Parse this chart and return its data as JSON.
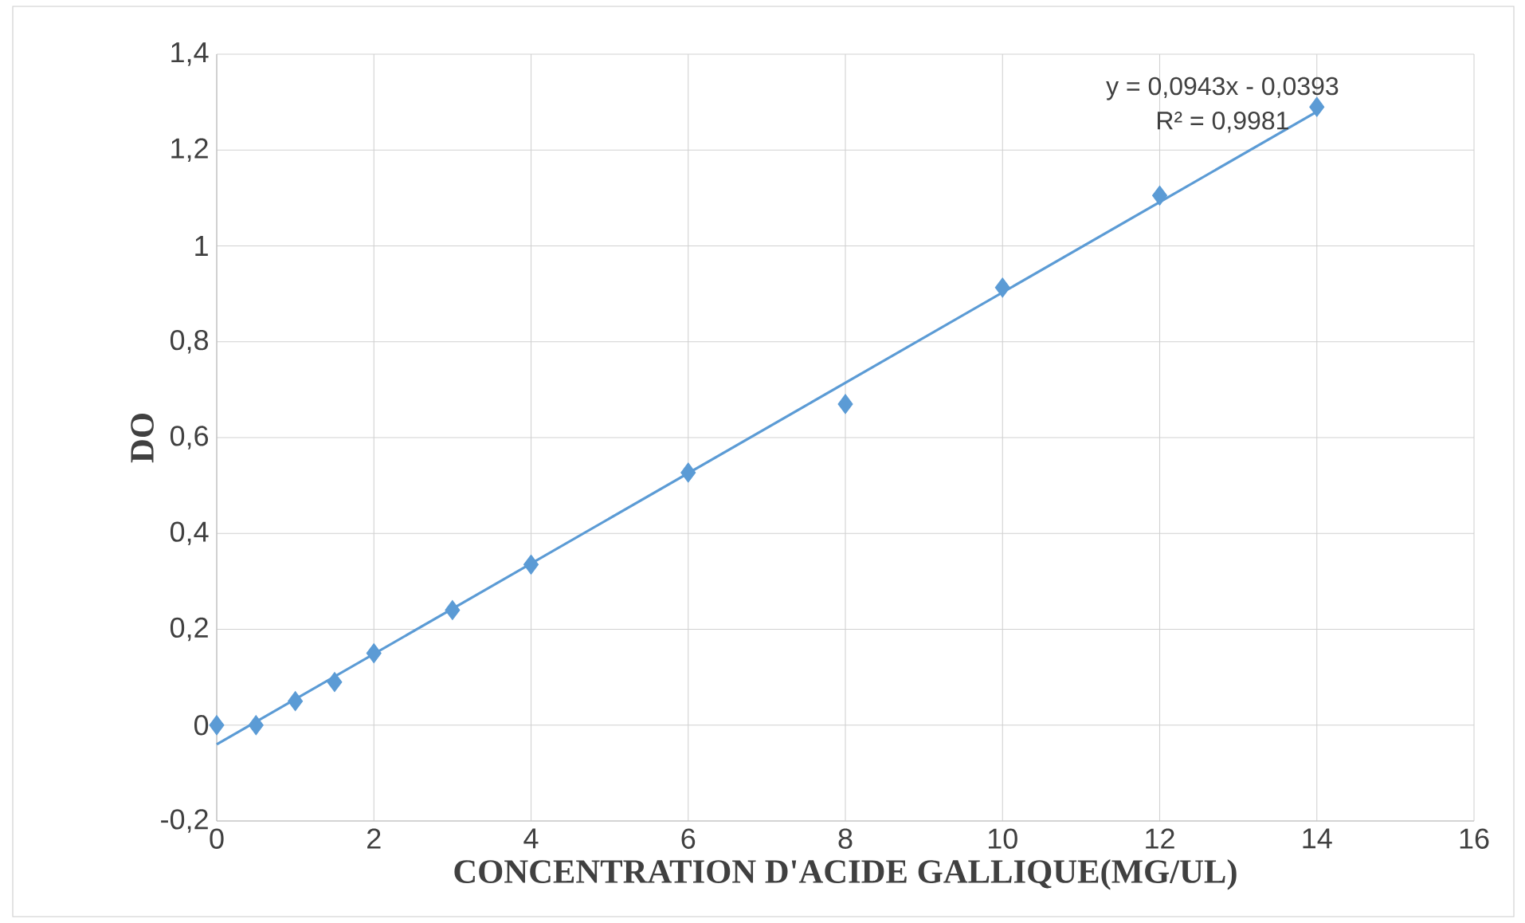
{
  "chart_data": {
    "type": "scatter",
    "xlabel": "CONCENTRATION D'ACIDE GALLIQUE(MG/UL)",
    "ylabel": "DO",
    "annotations": [
      "y = 0,0943x - 0,0393",
      "R² = 0,9981"
    ],
    "xlim": [
      0,
      16
    ],
    "xticks": [
      0,
      2,
      4,
      6,
      8,
      10,
      12,
      14,
      16
    ],
    "ylim": [
      -0.2,
      1.4
    ],
    "yticks": [
      {
        "value": -0.2,
        "label": "-0,2"
      },
      {
        "value": 0,
        "label": "0"
      },
      {
        "value": 0.2,
        "label": "0,2"
      },
      {
        "value": 0.4,
        "label": "0,4"
      },
      {
        "value": 0.6,
        "label": "0,6"
      },
      {
        "value": 0.8,
        "label": "0,8"
      },
      {
        "value": 1,
        "label": "1"
      },
      {
        "value": 1.2,
        "label": "1,2"
      },
      {
        "value": 1.4,
        "label": "1,4"
      }
    ],
    "grid": true,
    "series": [
      {
        "type": "scatter",
        "marker": "diamond",
        "color": "#5b9bd5",
        "x": [
          0,
          0.5,
          1,
          1.5,
          2,
          3,
          4,
          6,
          8,
          10,
          12,
          14
        ],
        "values": [
          0,
          0,
          0.05,
          0.09,
          0.15,
          0.24,
          0.335,
          0.527,
          0.67,
          0.913,
          1.105,
          1.29
        ]
      },
      {
        "type": "line",
        "color": "#5b9bd5",
        "x": [
          0,
          14
        ],
        "values": [
          -0.04,
          1.28
        ]
      }
    ]
  }
}
